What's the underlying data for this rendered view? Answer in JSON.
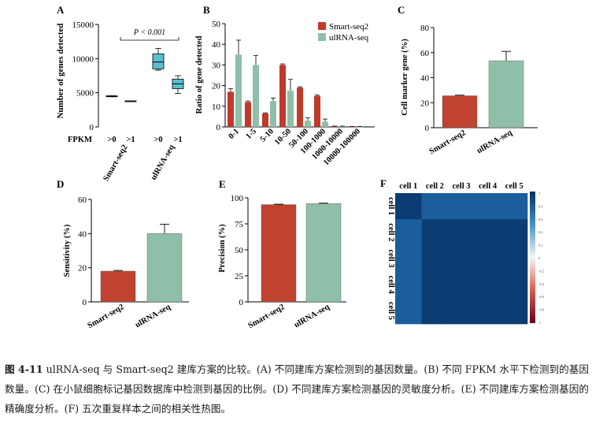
{
  "chart_data": [
    {
      "panel": "A",
      "type": "boxplot",
      "ylabel": "Number of genes detected",
      "ylim": [
        0,
        15000
      ],
      "yticks": [
        "0",
        "5000",
        "10000",
        "15000"
      ],
      "xaxis_title": "FPKM",
      "significance": "P < 0.001",
      "groups": [
        {
          "name": "Smart-seq2",
          "boxes": [
            {
              "threshold": ">0",
              "min": 4450,
              "q1": 4450,
              "median": 4500,
              "q3": 4550,
              "max": 4550,
              "color": "#b8b8b8"
            },
            {
              "threshold": ">1",
              "min": 3780,
              "q1": 3780,
              "median": 3800,
              "q3": 3820,
              "max": 3820,
              "color": "#b8b8b8"
            }
          ]
        },
        {
          "name": "ulRNA-seq",
          "boxes": [
            {
              "threshold": ">0",
              "min": 8300,
              "q1": 8500,
              "median": 9500,
              "q3": 10700,
              "max": 11500,
              "color": "#5bbfd0"
            },
            {
              "threshold": ">1",
              "min": 4900,
              "q1": 5600,
              "median": 6300,
              "q3": 7000,
              "max": 7500,
              "color": "#5bbfd0"
            }
          ]
        }
      ]
    },
    {
      "panel": "B",
      "type": "bar",
      "ylabel": "Ratio of gene detected",
      "ylim": [
        0,
        50
      ],
      "yticks": [
        "0",
        "10",
        "20",
        "30",
        "40",
        "50"
      ],
      "categories": [
        "0-1",
        "1-5",
        "5-10",
        "10-50",
        "50-100",
        "100-1000",
        "1000-10000",
        "10000-100000"
      ],
      "series": [
        {
          "name": "Smart-seq2",
          "color": "#c0392b",
          "values": [
            17,
            12,
            6.5,
            30,
            19,
            15,
            0.3,
            0.1
          ],
          "errors": [
            1.5,
            0.5,
            0.3,
            0.5,
            0.4,
            0.4,
            0.1,
            0.1
          ]
        },
        {
          "name": "ulRNA-seq",
          "color": "#8fbfa8",
          "values": [
            35,
            30,
            12.5,
            17.5,
            3,
            2.5,
            0.3,
            0.1
          ],
          "errors": [
            7,
            4.5,
            1.5,
            5.5,
            1.5,
            1.3,
            0.1,
            0.1
          ]
        }
      ]
    },
    {
      "panel": "C",
      "type": "bar",
      "ylabel": "Cell marker gene (%)",
      "ylim": [
        0,
        80
      ],
      "yticks": [
        "0",
        "20",
        "40",
        "60",
        "80"
      ],
      "categories": [
        "Smart-seq2",
        "ulRNA-seq"
      ],
      "values": [
        25.5,
        53.5
      ],
      "errors": [
        0.5,
        7.5
      ],
      "colors": [
        "#c0432f",
        "#8fbfa8"
      ]
    },
    {
      "panel": "D",
      "type": "bar",
      "ylabel": "Sensitivity (%)",
      "ylim": [
        0,
        60
      ],
      "yticks": [
        "0",
        "20",
        "40",
        "60"
      ],
      "categories": [
        "Smart-seq2",
        "ulRNA-seq"
      ],
      "values": [
        18,
        40
      ],
      "errors": [
        0.4,
        5.5
      ],
      "colors": [
        "#c0432f",
        "#8fbfa8"
      ]
    },
    {
      "panel": "E",
      "type": "bar",
      "ylabel": "Precision (%)",
      "ylim": [
        0,
        100
      ],
      "yticks": [
        "0",
        "25",
        "50",
        "75",
        "100"
      ],
      "categories": [
        "Smart-seq2",
        "ulRNA-seq"
      ],
      "values": [
        93.5,
        94.5
      ],
      "errors": [
        0.4,
        0.4
      ],
      "colors": [
        "#c0432f",
        "#8fbfa8"
      ]
    },
    {
      "panel": "F",
      "type": "heatmap",
      "labels": [
        "cell 1",
        "cell 2",
        "cell 3",
        "cell 4",
        "cell 5"
      ],
      "values": [
        [
          1.0,
          0.8,
          0.82,
          0.8,
          0.82
        ],
        [
          0.8,
          1.0,
          1.0,
          1.0,
          1.0
        ],
        [
          0.82,
          1.0,
          1.0,
          1.0,
          1.0
        ],
        [
          0.8,
          1.0,
          1.0,
          1.0,
          1.0
        ],
        [
          0.82,
          1.0,
          1.0,
          1.0,
          1.0
        ]
      ],
      "colorbar_ticks": [
        "1",
        "0.8",
        "0.6",
        "0.4",
        "0.2",
        "0",
        "-0.2",
        "-0.4",
        "-0.6",
        "-0.8",
        "-1"
      ]
    }
  ],
  "caption": {
    "label": "图 4-11",
    "text": " ulRNA-seq 与 Smart-seq2 建库方案的比较。(A) 不同建库方案检测到的基因数量。(B) 不同 FPKM 水平下检测到的基因数量。(C) 在小鼠细胞标记基因数据库中检测到基因的比例。(D) 不同建库方案检测基因的灵敏度分析。(E) 不同建库方案检测基因的精确度分析。(F) 五次重复样本之间的相关性热图。"
  }
}
